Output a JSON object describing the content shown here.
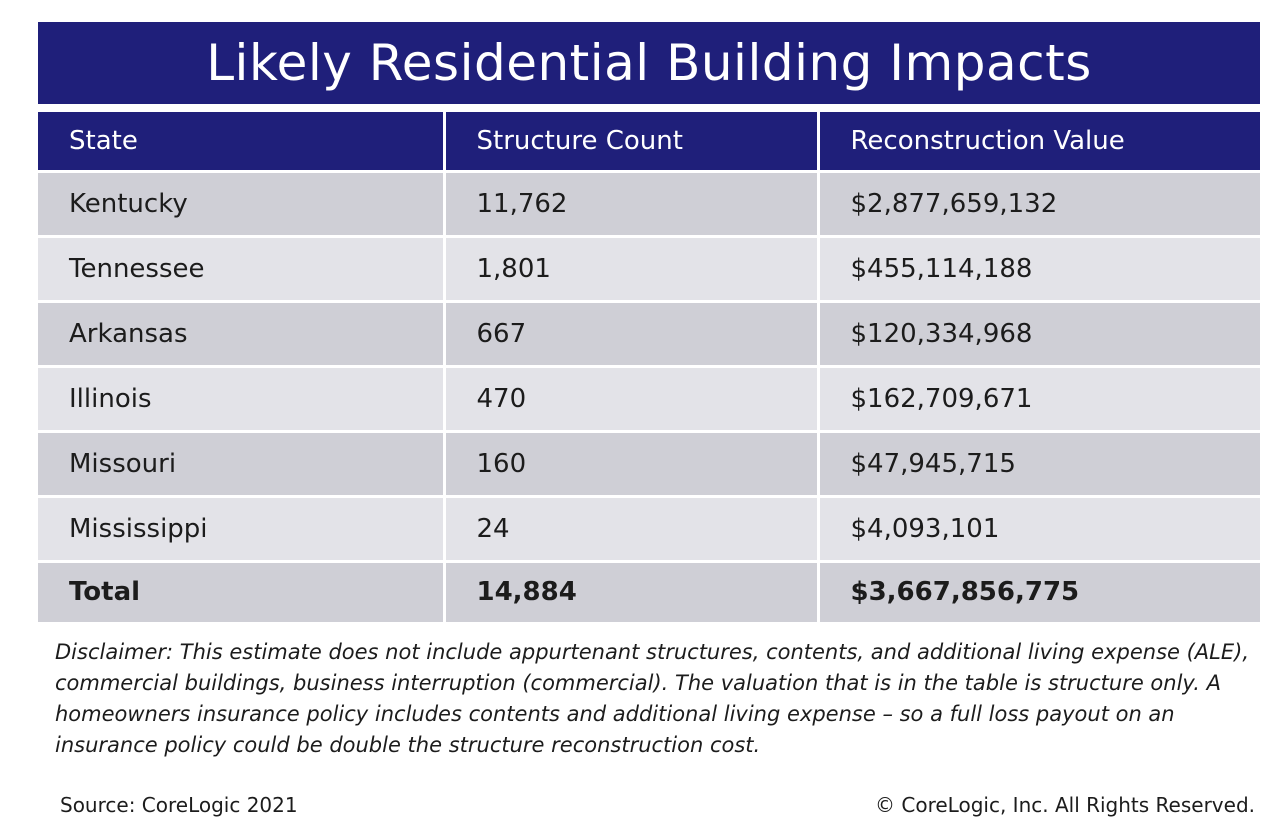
{
  "title": "Likely Residential Building Impacts",
  "colors": {
    "header_bg": "#1f1f7a",
    "row_dark": "#cfcfd6",
    "row_light": "#e3e3e8"
  },
  "table": {
    "headers": [
      "State",
      "Structure Count",
      "Reconstruction Value"
    ],
    "rows": [
      {
        "state": "Kentucky",
        "count": "11,762",
        "value": "$2,877,659,132"
      },
      {
        "state": "Tennessee",
        "count": "1,801",
        "value": "$455,114,188"
      },
      {
        "state": "Arkansas",
        "count": "667",
        "value": "$120,334,968"
      },
      {
        "state": "Illinois",
        "count": "470",
        "value": "$162,709,671"
      },
      {
        "state": "Missouri",
        "count": "160",
        "value": "$47,945,715"
      },
      {
        "state": "Mississippi",
        "count": "24",
        "value": "$4,093,101"
      }
    ],
    "total": {
      "state": "Total",
      "count": "14,884",
      "value": "$3,667,856,775"
    }
  },
  "disclaimer": "Disclaimer: This estimate does not include appurtenant structures, contents, and additional living expense (ALE), commercial buildings, business interruption (commercial). The valuation that is in the table is structure only. A homeowners insurance policy includes contents and additional living expense – so a full loss payout on an insurance policy could be double the structure reconstruction cost.",
  "footer": {
    "source": "Source: CoreLogic 2021",
    "copyright": "© CoreLogic, Inc. All Rights Reserved."
  }
}
